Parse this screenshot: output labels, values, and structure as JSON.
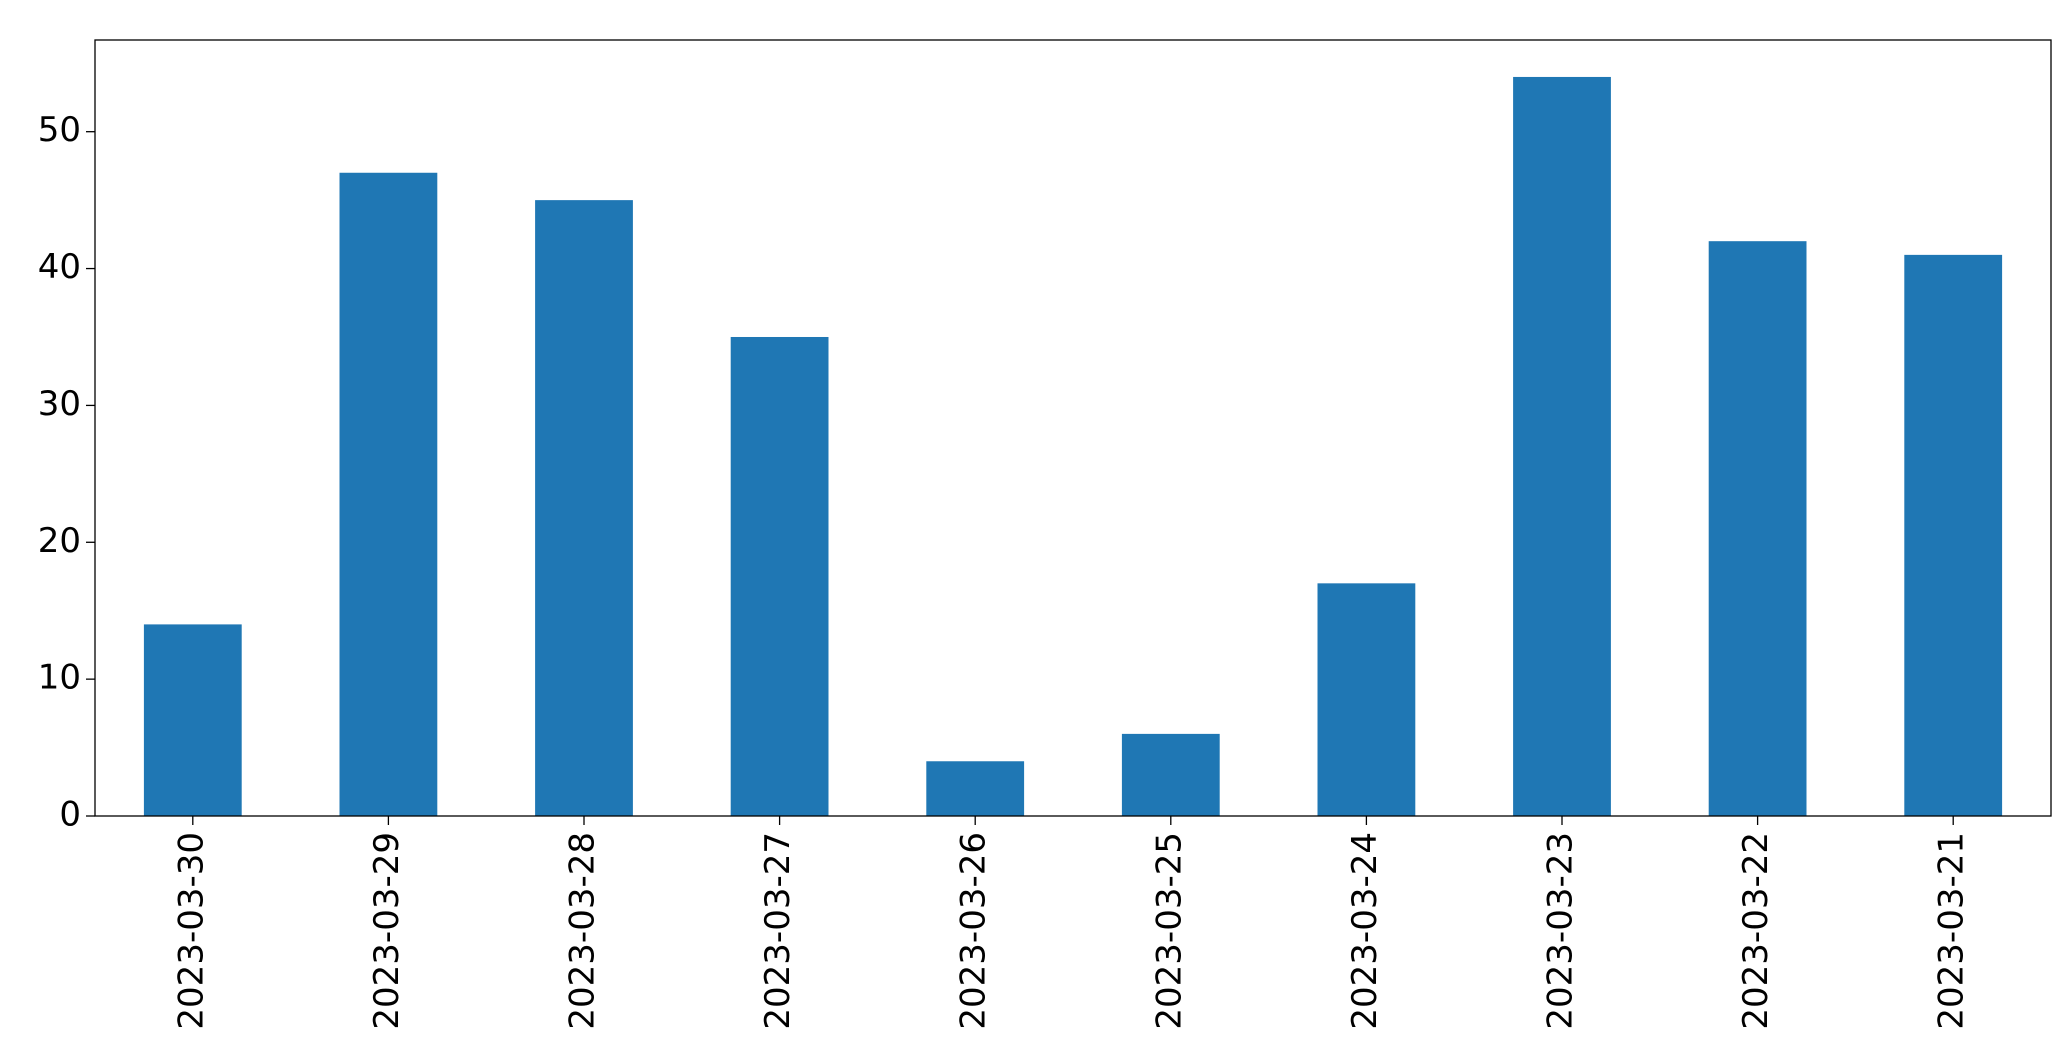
{
  "chart_data": {
    "type": "bar",
    "categories": [
      "2023-03-30",
      "2023-03-29",
      "2023-03-28",
      "2023-03-27",
      "2023-03-26",
      "2023-03-25",
      "2023-03-24",
      "2023-03-23",
      "2023-03-22",
      "2023-03-21"
    ],
    "values": [
      14,
      47,
      45,
      35,
      4,
      6,
      17,
      54,
      42,
      41
    ],
    "color": "#1f77b4",
    "ylim": [
      0,
      56.7
    ],
    "yticks": [
      0,
      10,
      20,
      30,
      40,
      50
    ],
    "grid": false
  }
}
